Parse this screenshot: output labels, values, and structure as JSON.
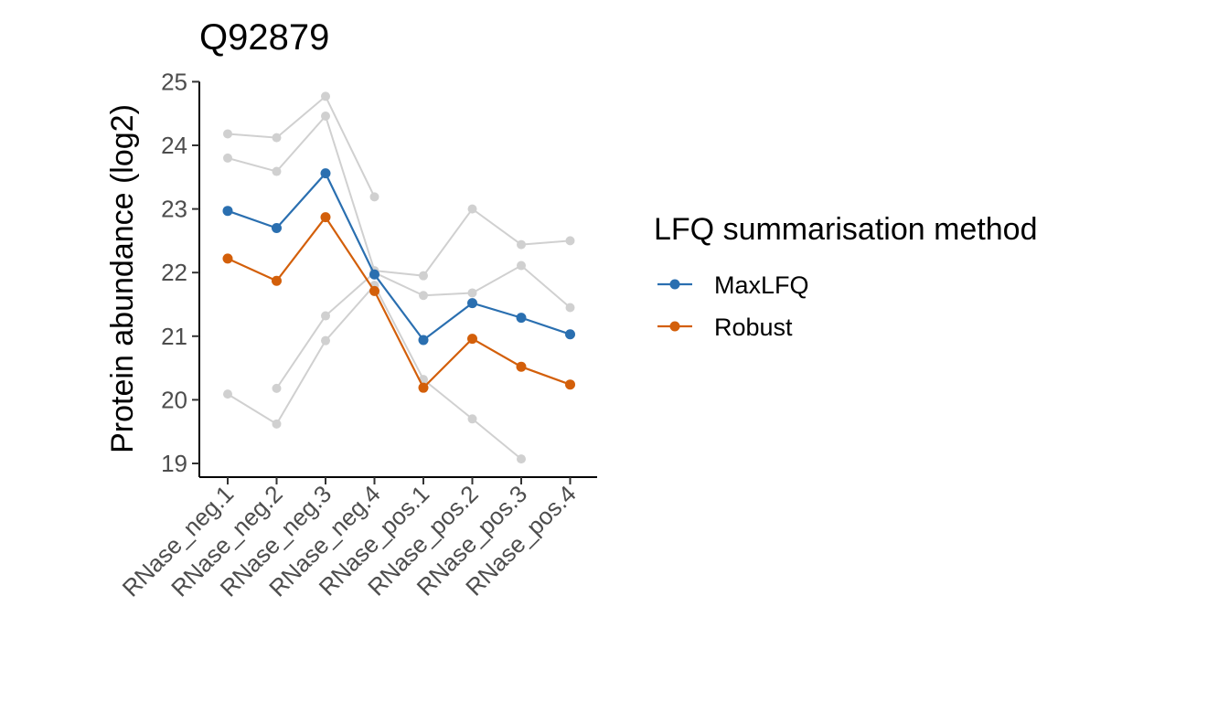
{
  "chart_data": {
    "type": "line",
    "title": "Q92879",
    "xlabel": "",
    "ylabel": "Protein abundance (log2)",
    "ylim": [
      18.8,
      25.0
    ],
    "yticks": [
      19,
      20,
      21,
      22,
      23,
      24,
      25
    ],
    "grid": false,
    "categories": [
      "RNase_neg.1",
      "RNase_neg.2",
      "RNase_neg.3",
      "RNase_neg.4",
      "RNase_pos.1",
      "RNase_pos.2",
      "RNase_pos.3",
      "RNase_pos.4"
    ],
    "background_series": [
      {
        "values": [
          24.18,
          24.12,
          24.77,
          23.19,
          null,
          null,
          null,
          null
        ]
      },
      {
        "values": [
          23.8,
          23.59,
          24.46,
          22.03,
          21.95,
          23.0,
          22.44,
          22.5
        ]
      },
      {
        "values": [
          20.09,
          19.62,
          20.93,
          21.8,
          20.32,
          19.7,
          19.07,
          null
        ]
      },
      {
        "values": [
          null,
          20.18,
          21.32,
          22.0,
          21.64,
          21.68,
          22.11,
          21.45
        ]
      }
    ],
    "series": [
      {
        "name": "MaxLFQ",
        "color": "#2a6fb0",
        "values": [
          22.97,
          22.7,
          23.56,
          21.97,
          20.94,
          21.52,
          21.29,
          21.03
        ]
      },
      {
        "name": "Robust",
        "color": "#d35f0a",
        "values": [
          22.22,
          21.87,
          22.87,
          21.71,
          20.19,
          20.96,
          20.52,
          20.24
        ]
      }
    ],
    "background_color": "#d0d0d0",
    "legend_title": "LFQ summarisation method",
    "legend_position": "right"
  }
}
